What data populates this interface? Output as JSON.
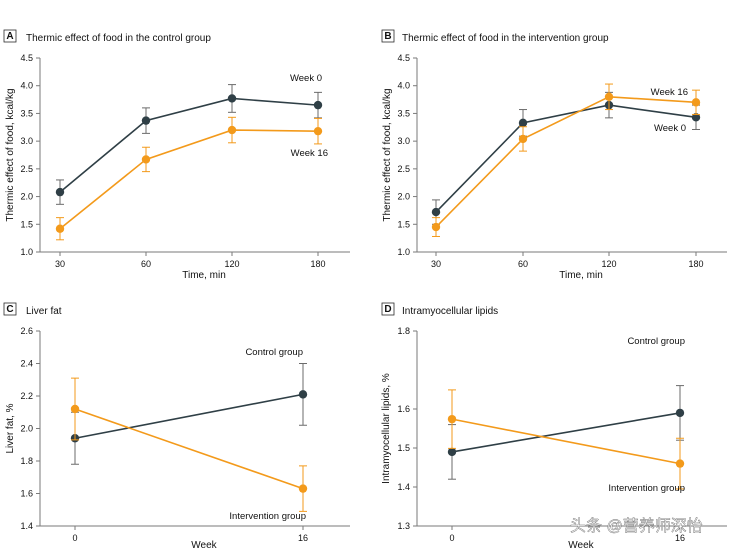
{
  "colors": {
    "control_series": "#2f3f46",
    "intervention_series": "#f39a1b",
    "axis": "#7a7a7a",
    "text": "#111111",
    "error_bar_dark": "#6b6b6b",
    "error_bar_orange": "#f39a1b"
  },
  "watermark": {
    "text": "头条 @营养师深怡"
  },
  "chart_data": [
    {
      "id": "A",
      "type": "line",
      "title": "Thermic effect of food in the control group",
      "xlabel": "Time, min",
      "ylabel": "Thermic effect of food, kcal/kg",
      "x": [
        30,
        60,
        120,
        180
      ],
      "xticks": [
        "30",
        "60",
        "120",
        "180"
      ],
      "yticks": [
        "1.0",
        "1.5",
        "2.0",
        "2.5",
        "3.0",
        "3.5",
        "4.0",
        "4.5"
      ],
      "ylim": [
        1.0,
        4.5
      ],
      "series": [
        {
          "name": "Week 0",
          "color": "#2f3f46",
          "values": [
            2.08,
            3.37,
            3.77,
            3.65
          ],
          "errors": [
            0.22,
            0.23,
            0.25,
            0.23
          ]
        },
        {
          "name": "Week 16",
          "color": "#f39a1b",
          "values": [
            1.42,
            2.67,
            3.2,
            3.18
          ],
          "errors": [
            0.2,
            0.22,
            0.23,
            0.23
          ]
        }
      ]
    },
    {
      "id": "B",
      "type": "line",
      "title": "Thermic effect of food in the intervention group",
      "xlabel": "Time, min",
      "ylabel": "Thermic effect of food, kcal/kg",
      "x": [
        30,
        60,
        120,
        180
      ],
      "xticks": [
        "30",
        "60",
        "120",
        "180"
      ],
      "yticks": [
        "1.0",
        "1.5",
        "2.0",
        "2.5",
        "3.0",
        "3.5",
        "4.0",
        "4.5"
      ],
      "ylim": [
        1.0,
        4.5
      ],
      "series": [
        {
          "name": "Week 0",
          "color": "#2f3f46",
          "values": [
            1.72,
            3.33,
            3.65,
            3.43
          ],
          "errors": [
            0.22,
            0.24,
            0.23,
            0.22
          ]
        },
        {
          "name": "Week 16",
          "color": "#f39a1b",
          "values": [
            1.45,
            3.04,
            3.8,
            3.7
          ],
          "errors": [
            0.17,
            0.22,
            0.23,
            0.22
          ]
        }
      ]
    },
    {
      "id": "C",
      "type": "line",
      "title": "Liver fat",
      "xlabel": "Week",
      "ylabel": "Liver fat, %",
      "x": [
        0,
        16
      ],
      "xticks": [
        "0",
        "16"
      ],
      "yticks": [
        "1.4",
        "1.6",
        "1.8",
        "2.0",
        "2.2",
        "2.4",
        "2.6"
      ],
      "ylim": [
        1.4,
        2.6
      ],
      "series": [
        {
          "name": "Control group",
          "color": "#2f3f46",
          "values": [
            1.94,
            2.21
          ],
          "errors": [
            0.16,
            0.19
          ]
        },
        {
          "name": "Intervention group",
          "color": "#f39a1b",
          "values": [
            2.12,
            1.63
          ],
          "errors": [
            0.19,
            0.14
          ]
        }
      ]
    },
    {
      "id": "D",
      "type": "line",
      "title": "Intramyocellular lipids",
      "xlabel": "Week",
      "ylabel": "Intramyocellular lipids, %",
      "x": [
        0,
        16
      ],
      "xticks": [
        "0",
        "16"
      ],
      "yticks": [
        "1.3",
        "1.4",
        "1.5",
        "1.6",
        "1.8"
      ],
      "ylim": [
        1.3,
        1.8
      ],
      "series": [
        {
          "name": "Control group",
          "color": "#2f3f46",
          "values": [
            1.49,
            1.59
          ],
          "errors": [
            0.07,
            0.07
          ]
        },
        {
          "name": "Intervention group",
          "color": "#f39a1b",
          "values": [
            1.574,
            1.46
          ],
          "errors": [
            0.075,
            0.065
          ]
        }
      ]
    }
  ]
}
